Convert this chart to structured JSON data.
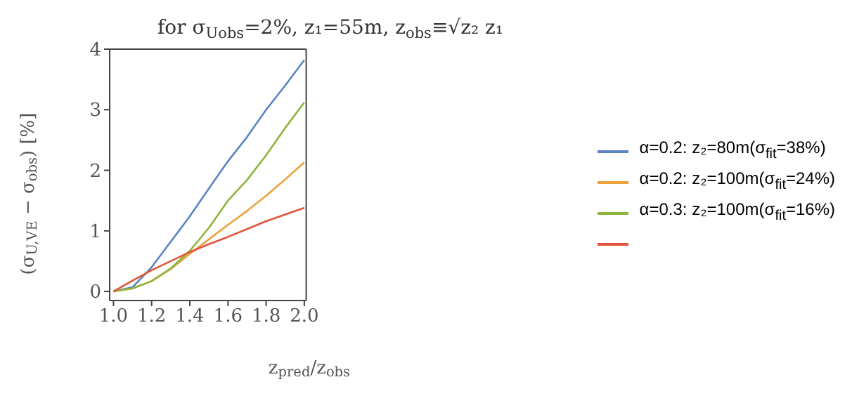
{
  "chart_data": {
    "type": "line",
    "title": "for σ$_{Uobs}$=2%, z₁=55m, z$_{obs}$≡√z₂ z₁",
    "xlabel": "z$_{pred}$/z$_{obs}$",
    "ylabel": "(σ$_{U,VE}$ − σ$_{obs}$) [%]",
    "x": [
      1.0,
      1.1,
      1.2,
      1.3,
      1.4,
      1.5,
      1.6,
      1.7,
      1.8,
      1.9,
      2.0
    ],
    "series": [
      {
        "name": "α=0.2: z₂=80m(σ$_{fit}$=38%)",
        "color": "#5a84c4",
        "values": [
          0,
          0.07,
          0.4,
          0.82,
          1.24,
          1.7,
          2.15,
          2.55,
          3.0,
          3.4,
          3.82
        ]
      },
      {
        "name": "α=0.2: z₂=100m(σ$_{fit}$=24%)",
        "color": "#eba23a",
        "values": [
          0,
          0.05,
          0.17,
          0.37,
          0.62,
          0.86,
          1.1,
          1.33,
          1.58,
          1.85,
          2.13
        ]
      },
      {
        "name": "α=0.3: z₂=100m(σ$_{fit}$=16%)",
        "color": "#8db43c",
        "values": [
          0,
          0.05,
          0.17,
          0.38,
          0.67,
          1.05,
          1.5,
          1.84,
          2.25,
          2.7,
          3.12
        ]
      },
      {
        "color": "#e0553a",
        "values": [
          0,
          0.18,
          0.35,
          0.5,
          0.65,
          0.78,
          0.9,
          1.03,
          1.16,
          1.27,
          1.38
        ]
      }
    ],
    "xlim": [
      0.98,
      2.01
    ],
    "ylim": [
      -0.15,
      4
    ],
    "xticks": [
      {
        "value": 1.0,
        "label": "1.0"
      },
      1.2,
      1.4,
      1.6,
      1.8,
      {
        "value": 2.0,
        "label": "2.0"
      }
    ],
    "yticks": [
      0,
      1,
      2,
      3,
      4
    ],
    "legend": "right",
    "grid": false,
    "marker": "none",
    "line_style": "solid"
  }
}
